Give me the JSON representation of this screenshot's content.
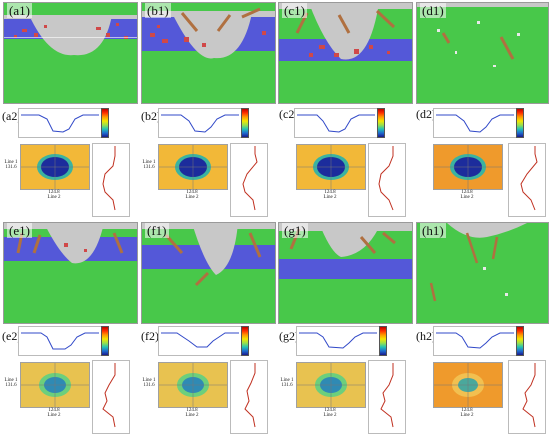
{
  "panels_top": [
    {
      "label": "(a1)"
    },
    {
      "label": "(b1)"
    },
    {
      "label": "(c1)"
    },
    {
      "label": "(d1)"
    }
  ],
  "panels_bottom": [
    {
      "label": "(e1)"
    },
    {
      "label": "(f1)"
    },
    {
      "label": "(g1)"
    },
    {
      "label": "(h1)"
    }
  ],
  "analysis_top": [
    {
      "label": "(a2)",
      "line1": "Line 1",
      "line1_val": "131.6",
      "line2": "Line 2",
      "line2_val": "124.8",
      "map_bg": "#f2b838"
    },
    {
      "label": "(b2)",
      "line1": "Line 1",
      "line1_val": "131.6",
      "line2": "Line 2",
      "line2_val": "124.8",
      "map_bg": "#f2b838"
    },
    {
      "label": "(c2)",
      "line1": "",
      "line1_val": "",
      "line2": "Line 2",
      "line2_val": "124.8",
      "map_bg": "#f2b838"
    },
    {
      "label": "(d2)",
      "line1": "",
      "line1_val": "",
      "line2": "Line 2",
      "line2_val": "124.8",
      "map_bg": "#ef9a2c"
    }
  ],
  "analysis_bottom": [
    {
      "label": "(e2)",
      "line1": "Line 1",
      "line1_val": "131.6",
      "line2": "Line 2",
      "line2_val": "124.8",
      "map_bg": "#e8c250"
    },
    {
      "label": "(f2)",
      "line1": "Line 1",
      "line1_val": "131.6",
      "line2": "Line 2",
      "line2_val": "124.8",
      "map_bg": "#e8c250"
    },
    {
      "label": "(g2)",
      "line1": "Line 1",
      "line1_val": "131.6",
      "line2": "Line 2",
      "line2_val": "124.8",
      "map_bg": "#e8c250"
    },
    {
      "label": "(h2)",
      "line1": "",
      "line1_val": "",
      "line2": "Line 2",
      "line2_val": "124.8",
      "map_bg": "#ef9a2c"
    }
  ],
  "colors": {
    "bulk": "#48c84a",
    "layer": "#5458d8",
    "damage": "#c8c8c8",
    "defect": "#d04848",
    "twin": "#b07040",
    "profile_line": "#3048c8",
    "side_line": "#c03020"
  }
}
